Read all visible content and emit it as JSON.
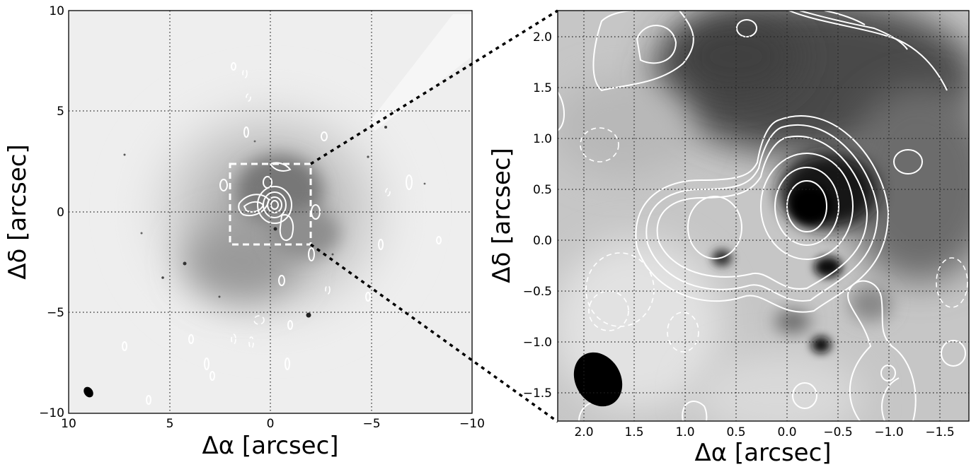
{
  "figure": {
    "left_panel": {
      "xlabel": "Δα [arcsec]",
      "ylabel": "Δδ [arcsec]",
      "xticks": [
        "10",
        "5",
        "0",
        "−5",
        "−10"
      ],
      "yticks": [
        "10",
        "5",
        "0",
        "−5",
        "−10"
      ],
      "xlim": [
        10,
        -10
      ],
      "ylim": [
        -10,
        10
      ]
    },
    "right_panel": {
      "xlabel": "Δα [arcsec]",
      "ylabel": "Δδ [arcsec]",
      "xticks": [
        "2.0",
        "1.5",
        "1.0",
        "0.5",
        "0.0",
        "−0.5",
        "−1.0",
        "−1.5"
      ],
      "yticks": [
        "2.0",
        "1.5",
        "1.0",
        "0.5",
        "0.0",
        "−0.5",
        "−1.0",
        "−1.5"
      ],
      "xlim": [
        2.3,
        -1.75
      ],
      "ylim": [
        -1.75,
        2.25
      ]
    },
    "colors": {
      "contour": "#ffffff",
      "beam": "#000000",
      "zoom_lines": "#000000"
    }
  }
}
